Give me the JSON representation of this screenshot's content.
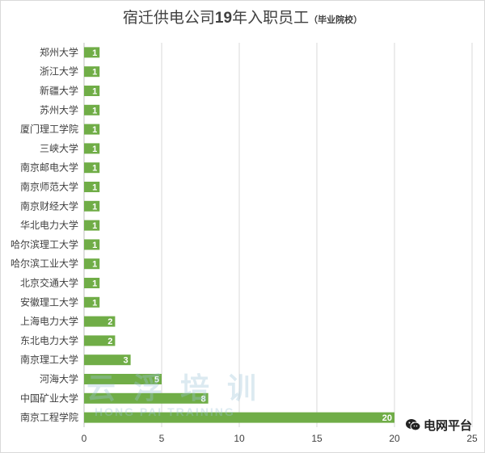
{
  "title": {
    "main": "宿迁供电公司",
    "bold_part": "19",
    "main2": "年入职员工",
    "small": "（毕业院校）"
  },
  "watermark": {
    "main": "云 浮 培 训",
    "sub": "HONG PAI TRAINING"
  },
  "brand": {
    "icon": "wechat-icon",
    "label": "电网平台"
  },
  "chart_data": {
    "type": "bar",
    "orientation": "horizontal",
    "categories": [
      "郑州大学",
      "浙江大学",
      "新疆大学",
      "苏州大学",
      "厦门理工学院",
      "三峡大学",
      "南京邮电大学",
      "南京师范大学",
      "南京财经大学",
      "华北电力大学",
      "哈尔滨理工大学",
      "哈尔滨工业大学",
      "北京交通大学",
      "安徽理工大学",
      "上海电力大学",
      "东北电力大学",
      "南京理工大学",
      "河海大学",
      "中国矿业大学",
      "南京工程学院"
    ],
    "values": [
      1,
      1,
      1,
      1,
      1,
      1,
      1,
      1,
      1,
      1,
      1,
      1,
      1,
      1,
      2,
      2,
      3,
      5,
      8,
      20
    ],
    "xlim": [
      0,
      25
    ],
    "xticks": [
      0,
      5,
      10,
      15,
      20,
      25
    ],
    "grid": true,
    "bar_color": "#70ad47",
    "label_color": "#ffffff",
    "data_labels": true
  }
}
